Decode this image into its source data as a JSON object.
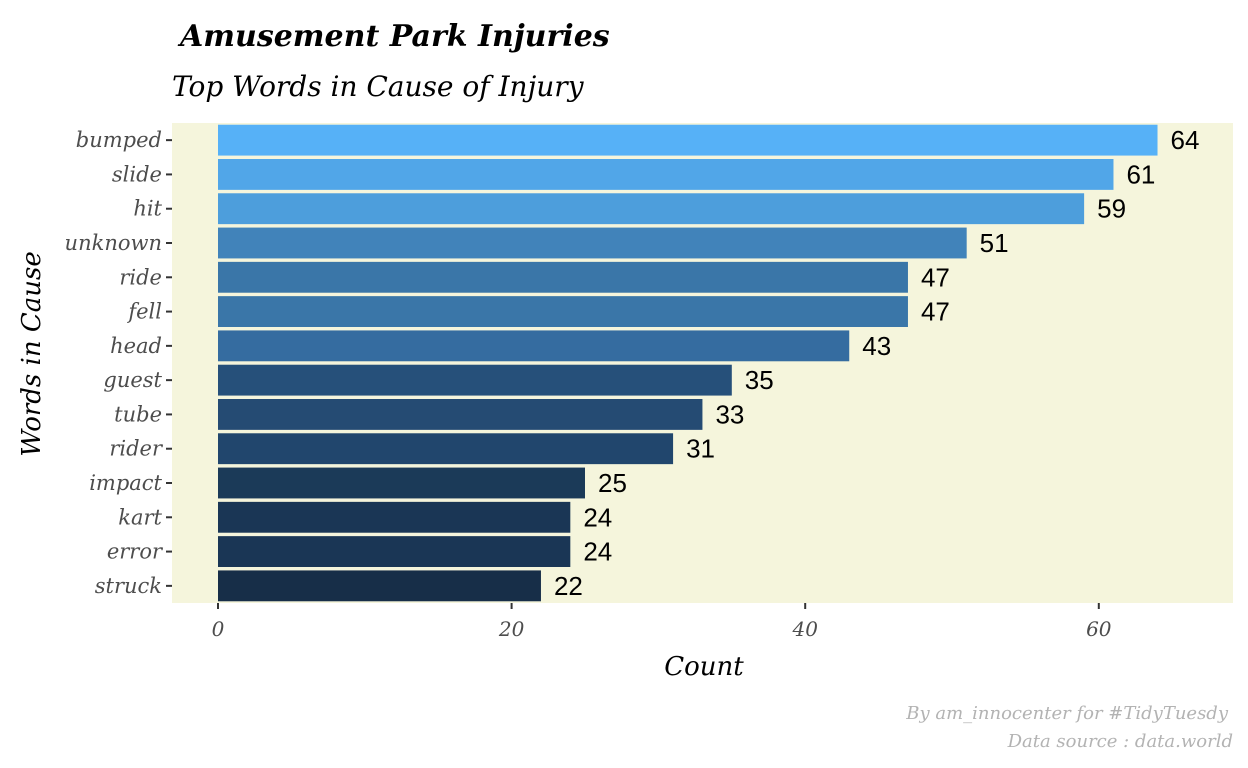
{
  "chart_data": {
    "type": "bar",
    "orientation": "horizontal",
    "title": "Amusement Park Injuries",
    "subtitle": "Top Words in Cause of Injury",
    "xlabel": "Count",
    "ylabel": "Words in Cause",
    "categories": [
      "bumped",
      "slide",
      "hit",
      "unknown",
      "ride",
      "fell",
      "head",
      "guest",
      "tube",
      "rider",
      "impact",
      "kart",
      "error",
      "struck"
    ],
    "values": [
      64,
      61,
      59,
      51,
      47,
      47,
      43,
      35,
      33,
      31,
      25,
      24,
      24,
      22
    ],
    "xlim": [
      0,
      69
    ],
    "xticks": [
      0,
      20,
      40,
      60
    ],
    "grid": false,
    "legend": "none",
    "bar_colors": [
      "#56B1F7",
      "#51A6E8",
      "#4D9EDC",
      "#4183BA",
      "#3A76A8",
      "#3A76A8",
      "#356CA0",
      "#26507A",
      "#254B73",
      "#21466D",
      "#1B3A58",
      "#1A3655",
      "#1A3655",
      "#172E48"
    ],
    "caption": [
      "By am_innocenter for #TidyTuesdy",
      "Data source : data.world"
    ]
  },
  "colors": {
    "panel_background": "#F5F5DC",
    "page_background": "#FFFFFF",
    "caption_text": "#B3B3B3"
  }
}
